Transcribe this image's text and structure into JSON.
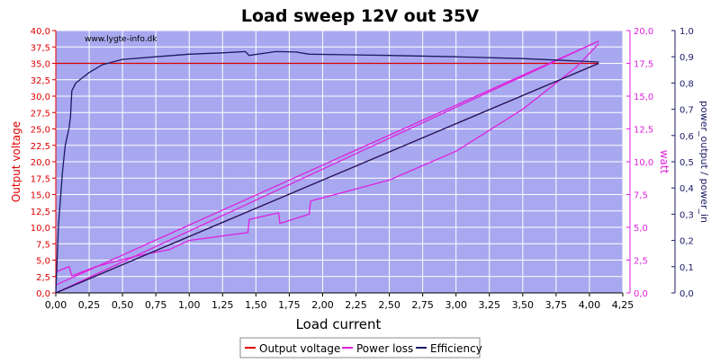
{
  "chart_data": {
    "type": "line",
    "title": "Load sweep 12V out 35V",
    "watermark": "www.lygte-info.dk",
    "xlabel": "Load current",
    "ylabel_left": "Output voltage",
    "ylabel_right1": "watt",
    "ylabel_right2": "power_output / power_in",
    "xlim": [
      0,
      4.25
    ],
    "ylim_left": [
      0,
      40
    ],
    "ylim_right1": [
      0,
      20
    ],
    "ylim_right2": [
      0,
      1
    ],
    "x_ticks": [
      "0,00",
      "0,25",
      "0,50",
      "0,75",
      "1,00",
      "1,25",
      "1,50",
      "1,75",
      "2,00",
      "2,25",
      "2,50",
      "2,75",
      "3,00",
      "3,25",
      "3,50",
      "3,75",
      "4,00",
      "4,25"
    ],
    "y_left_ticks": [
      "0,0",
      "2,5",
      "5,0",
      "7,5",
      "10,0",
      "12,5",
      "15,0",
      "17,5",
      "20,0",
      "22,5",
      "25,0",
      "27,5",
      "30,0",
      "32,5",
      "35,0",
      "37,5",
      "40,0"
    ],
    "y_right1_ticks": [
      "0,0",
      "2,5",
      "5,0",
      "7,5",
      "10,0",
      "12,5",
      "15,0",
      "17,5",
      "20,0"
    ],
    "y_right2_ticks": [
      "0,0",
      "0,1",
      "0,2",
      "0,3",
      "0,4",
      "0,5",
      "0,6",
      "0,7",
      "0,8",
      "0,9",
      "1,0"
    ],
    "grid": true,
    "legend_position": "bottom",
    "colors": {
      "plot_bg": "#a8a8f0",
      "grid": "#ffffff",
      "output_voltage": "#dd0000",
      "power_loss": "#dd22dd",
      "efficiency": "#1a1a66",
      "left_axis": "#dd0000",
      "right1_axis": "#dd22dd",
      "right2_axis": "#1a1a66"
    },
    "series": [
      {
        "name": "Output voltage",
        "axis": "left",
        "color": "#dd0000",
        "points": [
          [
            0,
            35.0
          ],
          [
            4.07,
            35.0
          ]
        ]
      },
      {
        "name": "Output voltage",
        "axis": "left",
        "color": "#dd0000",
        "points": [
          [
            0,
            0
          ],
          [
            4.07,
            35.0
          ]
        ]
      },
      {
        "name": "Power loss",
        "axis": "right1",
        "color": "#dd22dd",
        "points": [
          [
            0,
            1.6
          ],
          [
            0.1,
            2.0
          ],
          [
            0.12,
            1.3
          ],
          [
            0.3,
            2.0
          ],
          [
            0.6,
            2.8
          ],
          [
            0.85,
            3.3
          ],
          [
            1.0,
            4.0
          ],
          [
            1.44,
            4.6
          ],
          [
            1.45,
            5.6
          ],
          [
            1.67,
            6.1
          ],
          [
            1.68,
            5.3
          ],
          [
            1.9,
            6.0
          ],
          [
            1.91,
            7.0
          ],
          [
            2.5,
            8.6
          ],
          [
            3.0,
            10.8
          ],
          [
            3.5,
            14.0
          ],
          [
            3.9,
            17.2
          ],
          [
            4.07,
            19.0
          ]
        ]
      },
      {
        "name": "Power loss",
        "axis": "right1",
        "color": "#dd22dd",
        "points": [
          [
            0,
            0.6
          ],
          [
            4.07,
            19.2
          ]
        ]
      },
      {
        "name": "Power loss",
        "axis": "right1",
        "color": "#dd22dd",
        "points": [
          [
            0,
            0
          ],
          [
            4.07,
            19.2
          ]
        ]
      },
      {
        "name": "Efficiency",
        "axis": "right2",
        "color": "#1a1a66",
        "points": [
          [
            0,
            0
          ],
          [
            0.02,
            0.26
          ],
          [
            0.05,
            0.46
          ],
          [
            0.07,
            0.56
          ],
          [
            0.1,
            0.63
          ],
          [
            0.11,
            0.67
          ],
          [
            0.12,
            0.77
          ],
          [
            0.15,
            0.8
          ],
          [
            0.25,
            0.84
          ],
          [
            0.35,
            0.87
          ],
          [
            0.5,
            0.89
          ],
          [
            0.75,
            0.9
          ],
          [
            1.0,
            0.91
          ],
          [
            1.25,
            0.915
          ],
          [
            1.42,
            0.92
          ],
          [
            1.45,
            0.905
          ],
          [
            1.65,
            0.92
          ],
          [
            1.8,
            0.918
          ],
          [
            1.9,
            0.91
          ],
          [
            2.5,
            0.905
          ],
          [
            3.0,
            0.9
          ],
          [
            3.5,
            0.893
          ],
          [
            4.07,
            0.88
          ]
        ]
      },
      {
        "name": "Efficiency",
        "axis": "right2",
        "color": "#1a1a66",
        "points": [
          [
            0,
            0
          ],
          [
            4.07,
            0.875
          ]
        ]
      }
    ],
    "legend": [
      {
        "name": "Output voltage",
        "color": "#dd0000"
      },
      {
        "name": "Power loss",
        "color": "#dd22dd"
      },
      {
        "name": "Efficiency",
        "color": "#1a1a66"
      }
    ]
  }
}
